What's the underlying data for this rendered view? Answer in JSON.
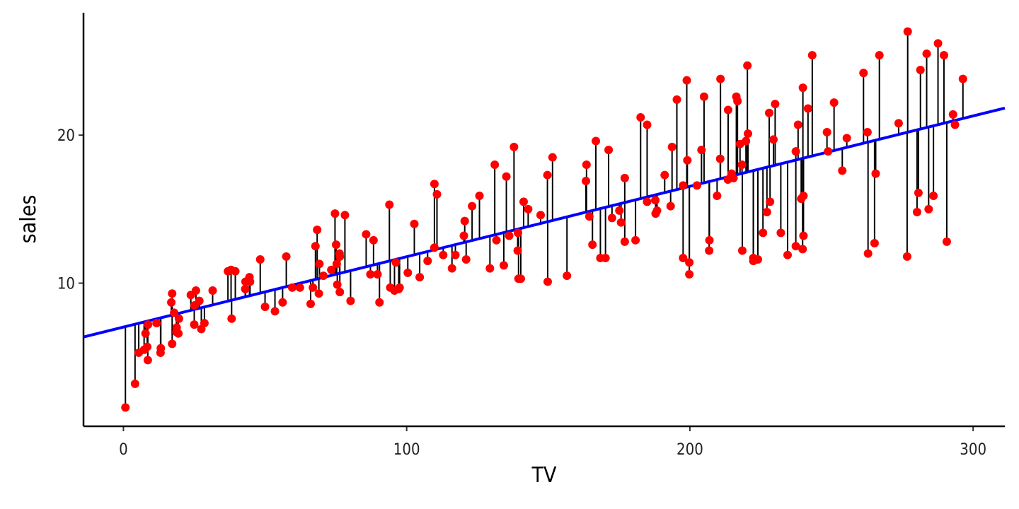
{
  "chart_data": {
    "type": "scatter",
    "x_label": "TV",
    "y_label": "sales",
    "xlim": [
      -14.1,
      311.2
    ],
    "ylim": [
      0.33,
      28.27
    ],
    "xticks": [
      0,
      100,
      200,
      300
    ],
    "yticks": [
      10,
      20
    ],
    "color": "#ff0000",
    "line_color": "#0000ff",
    "residual_color": "#000000",
    "fit": {
      "intercept": 7.0326,
      "slope": 0.04754
    },
    "x": [
      230.1,
      44.5,
      17.2,
      151.5,
      180.8,
      8.7,
      57.5,
      120.2,
      8.6,
      199.8,
      66.1,
      214.7,
      23.8,
      97.5,
      204.1,
      195.4,
      67.8,
      281.4,
      69.2,
      147.3,
      218.4,
      237.4,
      13.2,
      228.3,
      62.3,
      262.9,
      142.9,
      240.1,
      248.8,
      70.6,
      292.9,
      112.9,
      97.2,
      265.6,
      95.7,
      290.7,
      266.9,
      74.7,
      43.1,
      228,
      202.5,
      177,
      293.6,
      206.9,
      25.1,
      175.1,
      89.7,
      239.9,
      227.2,
      66.9,
      199.8,
      100.4,
      216.4,
      182.6,
      262.7,
      198.9,
      7.3,
      136.2,
      210.8,
      210.7,
      53.5,
      261.3,
      239.3,
      102.7,
      131.1,
      69,
      31.5,
      139.3,
      237.4,
      216.8,
      199.1,
      109.8,
      26.8,
      129.4,
      213.4,
      16.9,
      27.5,
      120.5,
      5.4,
      116,
      76.4,
      239.8,
      75.3,
      68.4,
      213.5,
      193.2,
      76.3,
      110.7,
      88.3,
      109.8,
      134.3,
      28.6,
      217.7,
      250.9,
      107.4,
      163.3,
      197.6,
      184.9,
      289.7,
      135.2,
      222.4,
      296.4,
      280.2,
      187.9,
      238.2,
      137.9,
      25,
      90.4,
      13.1,
      255.4,
      225.8,
      241.7,
      175.7,
      209.6,
      78.2,
      75.1,
      139.2,
      76.4,
      125.7,
      19.4,
      141.3,
      18.8,
      224,
      123.1,
      229.5,
      87.2,
      7.8,
      80.2,
      220.3,
      59.6,
      0.7,
      265.2,
      8.4,
      219.8,
      36.9,
      48.3,
      25.6,
      273.7,
      43,
      184.9,
      73.4,
      193.7,
      220.5,
      104.6,
      96.2,
      140.3,
      240.1,
      243.2,
      38,
      44.7,
      280.7,
      121,
      197.6,
      171.3,
      187.8,
      4.1,
      93.9,
      149.8,
      11.7,
      131.7,
      172.5,
      85.7,
      188.4,
      163.5,
      117.2,
      234.5,
      17.9,
      206.8,
      215.4,
      284.3,
      50,
      164.5,
      19.6,
      168.4,
      222.4,
      276.9,
      248.4,
      170.2,
      276.7,
      165.6,
      156.6,
      218.5,
      56.2,
      287.6,
      253.8,
      205,
      139.5,
      191.1,
      286,
      18.7,
      39.5,
      75.5,
      17.2,
      166.8,
      149.7,
      38.2,
      94.2,
      177,
      283.6,
      232.1
    ],
    "values": [
      22.1,
      10.4,
      9.3,
      18.5,
      12.9,
      7.2,
      11.8,
      13.2,
      4.8,
      10.6,
      8.6,
      17.4,
      9.2,
      9.7,
      19,
      22.4,
      12.5,
      24.4,
      11.3,
      14.6,
      18,
      12.5,
      5.6,
      15.5,
      9.7,
      12,
      15,
      15.9,
      18.9,
      10.5,
      21.4,
      11.9,
      9.6,
      17.4,
      9.5,
      12.8,
      25.4,
      14.7,
      10.1,
      21.5,
      16.6,
      17.1,
      20.7,
      12.9,
      8.5,
      14.9,
      10.6,
      23.2,
      14.8,
      9.7,
      11.4,
      10.7,
      22.6,
      21.2,
      20.2,
      23.7,
      5.5,
      13.2,
      23.8,
      18.4,
      8.1,
      24.2,
      15.7,
      14,
      18,
      9.3,
      9.5,
      13.4,
      18.9,
      22.3,
      18.3,
      12.4,
      8.8,
      11,
      17,
      8.7,
      6.9,
      14.2,
      5.3,
      11,
      11.8,
      12.3,
      11.3,
      13.6,
      21.7,
      15.2,
      12,
      16,
      12.9,
      16.7,
      11.2,
      7.3,
      19.4,
      22.2,
      11.5,
      16.9,
      11.7,
      15.5,
      25.4,
      17.2,
      11.7,
      23.8,
      14.8,
      14.7,
      20.7,
      19.2,
      7.2,
      8.7,
      5.3,
      19.8,
      13.4,
      21.8,
      14.1,
      15.9,
      14.6,
      12.6,
      12.2,
      9.4,
      15.9,
      6.6,
      15.5,
      7,
      11.6,
      15.2,
      19.7,
      10.6,
      6.6,
      8.8,
      24.7,
      9.7,
      1.6,
      12.7,
      5.7,
      19.6,
      10.8,
      11.6,
      9.5,
      20.8,
      9.6,
      20.7,
      10.9,
      19.2,
      20.1,
      10.4,
      11.4,
      10.3,
      13.2,
      25.4,
      10.9,
      10.1,
      16.1,
      11.6,
      16.6,
      19,
      15.6,
      3.2,
      15.3,
      10.1,
      7.3,
      12.9,
      14.4,
      13.3,
      14.9,
      18,
      11.9,
      11.9,
      8,
      12.2,
      17.1,
      15,
      8.4,
      14.5,
      7.6,
      11.7,
      11.5,
      27,
      20.2,
      11.7,
      11.8,
      12.6,
      10.5,
      12.2,
      8.7,
      26.2,
      17.6,
      22.6,
      10.3,
      17.3,
      15.9,
      6.7,
      10.8,
      9.9,
      5.9,
      19.6,
      17.3,
      7.6,
      9.7,
      12.8,
      25.5,
      13.4
    ]
  }
}
